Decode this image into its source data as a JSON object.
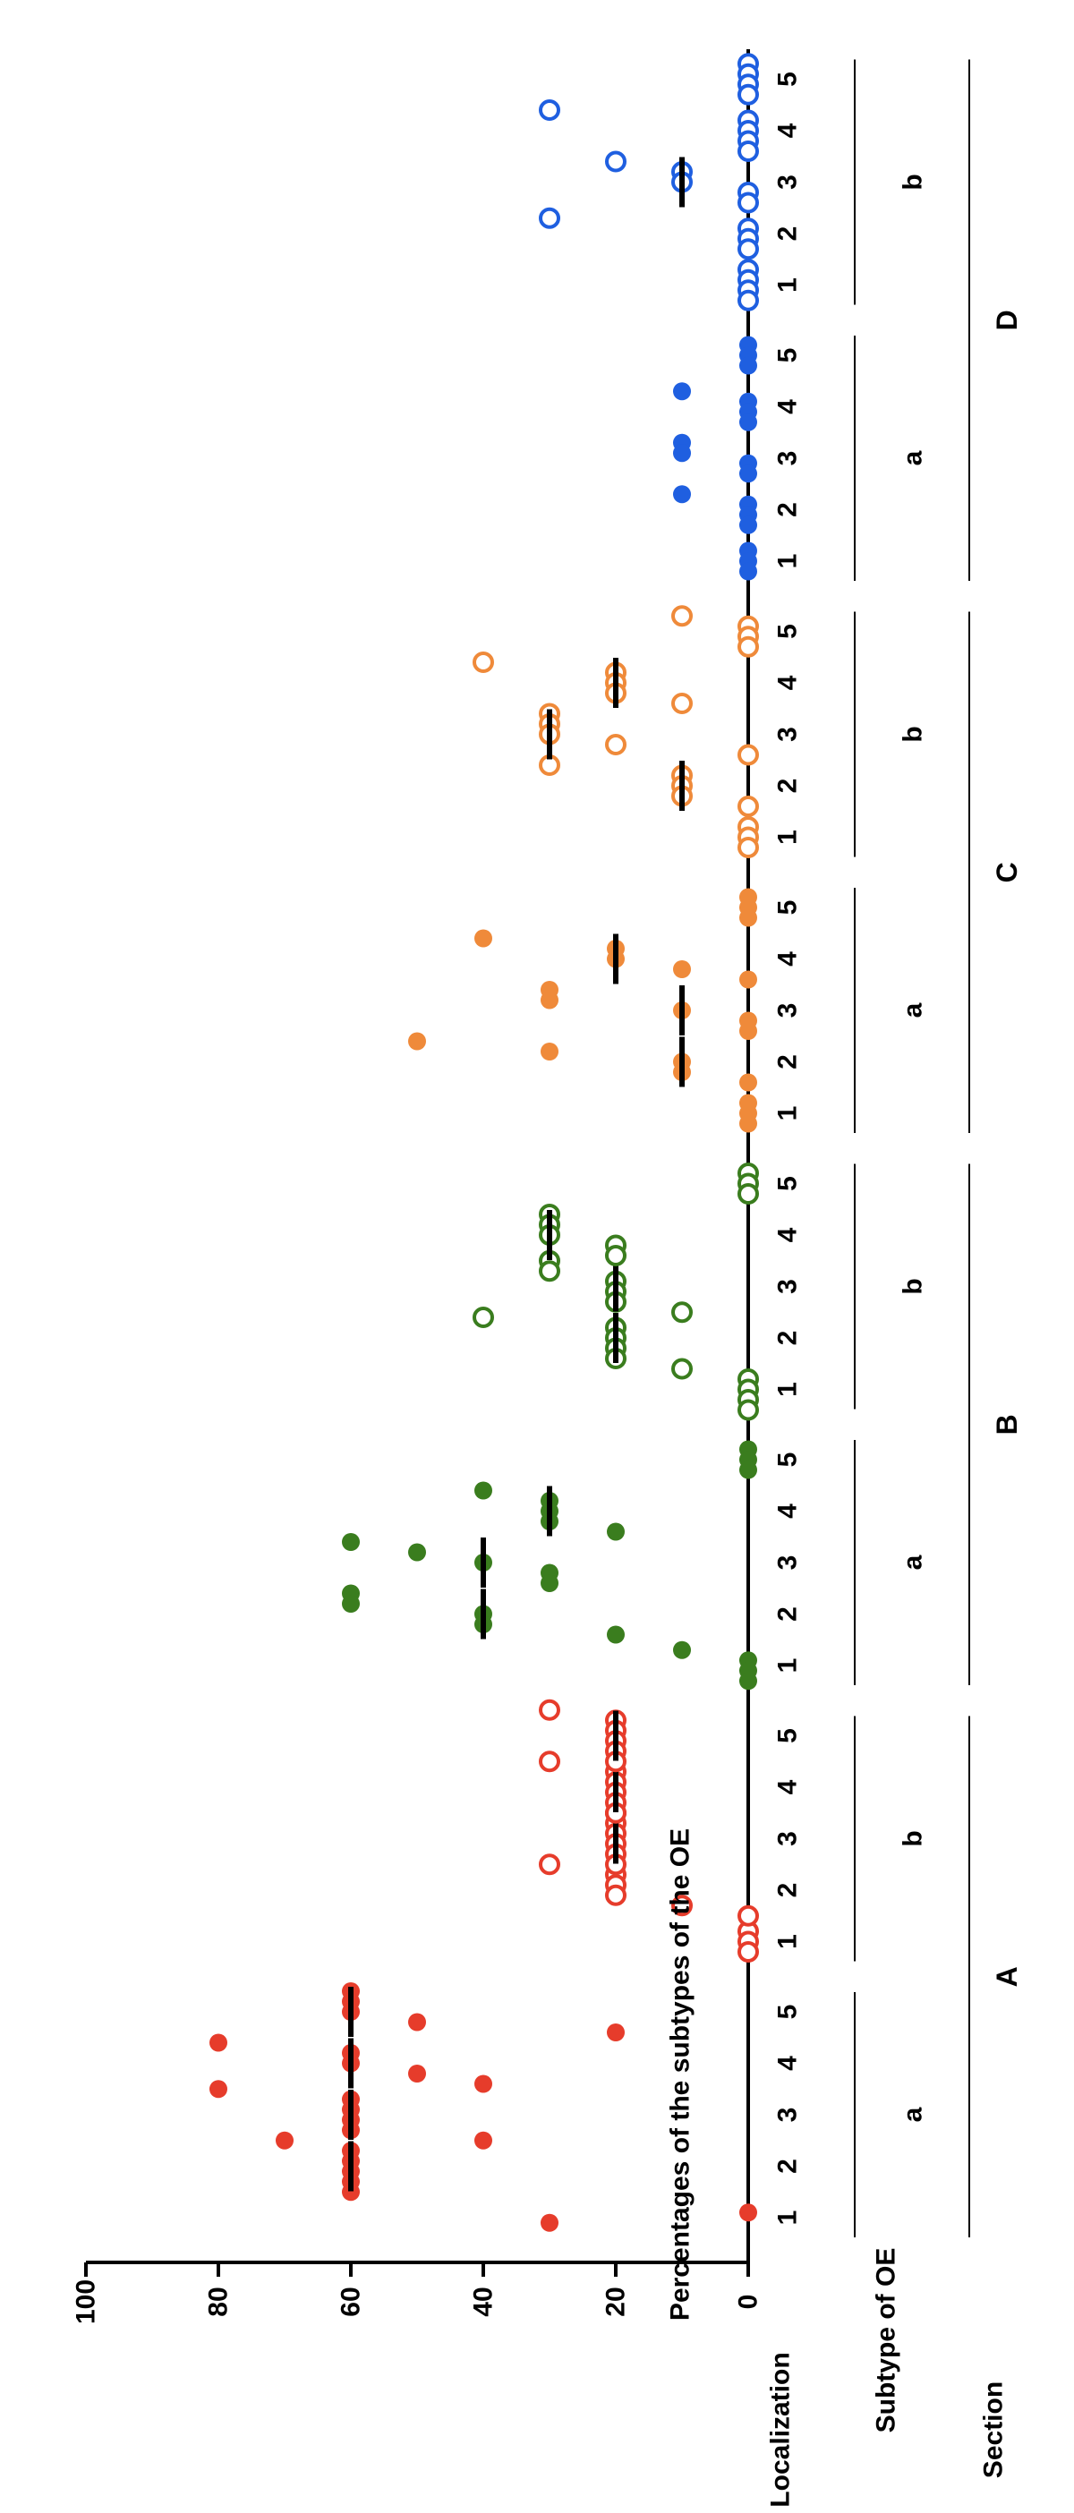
{
  "chart_data": {
    "type": "scatter",
    "ylabel": "Percentages of the subtypes of the OE",
    "ylim": [
      0,
      100
    ],
    "yticks": [
      0,
      20,
      40,
      60,
      80,
      100
    ],
    "row_labels": {
      "localization": "Localization",
      "subtype": "Subtype of  OE",
      "section": "Section"
    },
    "sections": [
      {
        "name": "A",
        "color": "#e63c2b",
        "subtypes": [
          {
            "name": "a",
            "filled": true,
            "groups": [
              {
                "loc": "1",
                "values": [
                  0,
                  30
                ],
                "median": null
              },
              {
                "loc": "2",
                "values": [
                  70,
                  60,
                  60,
                  60,
                  60,
                  60
                ],
                "median": 60
              },
              {
                "loc": "3",
                "values": [
                  80,
                  60,
                  60,
                  60,
                  60,
                  40
                ],
                "median": 60
              },
              {
                "loc": "4",
                "values": [
                  80,
                  60,
                  60,
                  50,
                  40
                ],
                "median": 60
              },
              {
                "loc": "5",
                "values": [
                  60,
                  60,
                  60,
                  50,
                  20
                ],
                "median": 60
              }
            ]
          },
          {
            "name": "b",
            "filled": false,
            "groups": [
              {
                "loc": "1",
                "values": [
                  0,
                  0,
                  0
                ],
                "median": null
              },
              {
                "loc": "2",
                "values": [
                  30,
                  20,
                  20,
                  20,
                  10,
                  0
                ],
                "median": null
              },
              {
                "loc": "3",
                "values": [
                  20,
                  20,
                  20,
                  20,
                  20,
                  20
                ],
                "median": 20
              },
              {
                "loc": "4",
                "values": [
                  30,
                  20,
                  20,
                  20,
                  20,
                  20
                ],
                "median": 20
              },
              {
                "loc": "5",
                "values": [
                  30,
                  20,
                  20,
                  20,
                  20,
                  20
                ],
                "median": 20
              }
            ]
          }
        ]
      },
      {
        "name": "B",
        "color": "#3a7d1e",
        "subtypes": [
          {
            "name": "a",
            "filled": true,
            "groups": [
              {
                "loc": "1",
                "values": [
                  10,
                  0,
                  0,
                  0
                ],
                "median": null
              },
              {
                "loc": "2",
                "values": [
                  60,
                  60,
                  40,
                  40,
                  20
                ],
                "median": 40
              },
              {
                "loc": "3",
                "values": [
                  60,
                  50,
                  40,
                  30,
                  30
                ],
                "median": 40
              },
              {
                "loc": "4",
                "values": [
                  40,
                  30,
                  30,
                  30,
                  20
                ],
                "median": 30
              },
              {
                "loc": "5",
                "values": [
                  0,
                  0,
                  0
                ],
                "median": null
              }
            ]
          },
          {
            "name": "b",
            "filled": false,
            "groups": [
              {
                "loc": "1",
                "values": [
                  10,
                  0,
                  0,
                  0,
                  0
                ],
                "median": null
              },
              {
                "loc": "2",
                "values": [
                  40,
                  20,
                  20,
                  20,
                  20
                ],
                "median": 20
              },
              {
                "loc": "3",
                "values": [
                  30,
                  30,
                  20,
                  20,
                  20,
                  10
                ],
                "median": 20
              },
              {
                "loc": "4",
                "values": [
                  30,
                  30,
                  30,
                  20,
                  20
                ],
                "median": 30
              },
              {
                "loc": "5",
                "values": [
                  0,
                  0,
                  0
                ],
                "median": null
              }
            ]
          }
        ]
      },
      {
        "name": "C",
        "color": "#ef8a3a",
        "subtypes": [
          {
            "name": "a",
            "filled": true,
            "groups": [
              {
                "loc": "1",
                "values": [
                  0,
                  0,
                  0
                ],
                "median": null
              },
              {
                "loc": "2",
                "values": [
                  50,
                  30,
                  10,
                  10,
                  0
                ],
                "median": 10
              },
              {
                "loc": "3",
                "values": [
                  30,
                  30,
                  10,
                  0,
                  0
                ],
                "median": 10
              },
              {
                "loc": "4",
                "values": [
                  40,
                  20,
                  20,
                  10,
                  0
                ],
                "median": 20
              },
              {
                "loc": "5",
                "values": [
                  0,
                  0,
                  0
                ],
                "median": null
              }
            ]
          },
          {
            "name": "b",
            "filled": false,
            "groups": [
              {
                "loc": "1",
                "values": [
                  0,
                  0,
                  0
                ],
                "median": null
              },
              {
                "loc": "2",
                "values": [
                  30,
                  10,
                  10,
                  10,
                  0
                ],
                "median": 10
              },
              {
                "loc": "3",
                "values": [
                  30,
                  30,
                  30,
                  20,
                  0
                ],
                "median": 30
              },
              {
                "loc": "4",
                "values": [
                  40,
                  20,
                  20,
                  20,
                  10
                ],
                "median": 20
              },
              {
                "loc": "5",
                "values": [
                  10,
                  0,
                  0,
                  0
                ],
                "median": null
              }
            ]
          }
        ]
      },
      {
        "name": "D",
        "color": "#1f5fe0",
        "subtypes": [
          {
            "name": "a",
            "filled": true,
            "groups": [
              {
                "loc": "1",
                "values": [
                  0,
                  0,
                  0
                ],
                "median": null
              },
              {
                "loc": "2",
                "values": [
                  10,
                  0,
                  0,
                  0
                ],
                "median": null
              },
              {
                "loc": "3",
                "values": [
                  10,
                  10,
                  0,
                  0
                ],
                "median": null
              },
              {
                "loc": "4",
                "values": [
                  10,
                  0,
                  0,
                  0
                ],
                "median": null
              },
              {
                "loc": "5",
                "values": [
                  0,
                  0,
                  0
                ],
                "median": null
              }
            ]
          },
          {
            "name": "b",
            "filled": false,
            "groups": [
              {
                "loc": "1",
                "values": [
                  0,
                  0,
                  0,
                  0
                ],
                "median": null
              },
              {
                "loc": "2",
                "values": [
                  30,
                  0,
                  0,
                  0
                ],
                "median": null
              },
              {
                "loc": "3",
                "values": [
                  20,
                  10,
                  10,
                  0,
                  0
                ],
                "median": 10
              },
              {
                "loc": "4",
                "values": [
                  30,
                  0,
                  0,
                  0,
                  0
                ],
                "median": null
              },
              {
                "loc": "5",
                "values": [
                  0,
                  0,
                  0,
                  0
                ],
                "median": null
              }
            ]
          }
        ]
      }
    ]
  }
}
